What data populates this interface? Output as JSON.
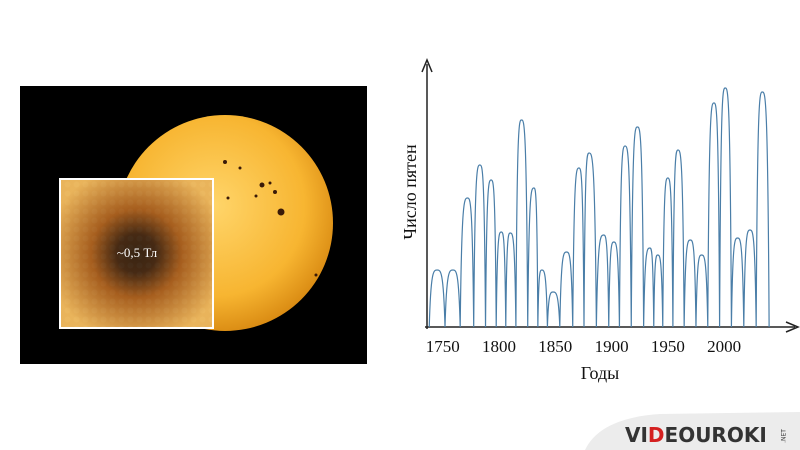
{
  "chart_data": {
    "type": "line",
    "x": [
      1738,
      1745,
      1752,
      1759,
      1765.5,
      1772,
      1777.5,
      1783,
      1788,
      1793,
      1797.5,
      1802,
      1806,
      1810,
      1815,
      1820,
      1825.5,
      1831,
      1834.5,
      1838,
      1843,
      1848,
      1854,
      1860,
      1865.5,
      1871,
      1875.5,
      1880,
      1886.5,
      1893,
      1897.5,
      1902,
      1907,
      1912,
      1917.5,
      1923,
      1928.5,
      1934,
      1937.5,
      1941,
      1945.5,
      1950,
      1954.5,
      1959,
      1964.5,
      1970,
      1975,
      1980,
      1985.5,
      1991,
      1996,
      2001,
      2006.5,
      2012,
      2017.5,
      2023,
      2028.5,
      2034,
      2040
    ],
    "values": [
      0,
      57,
      0,
      57,
      0,
      129,
      0,
      162,
      0,
      147,
      0,
      95,
      0,
      94,
      0,
      207,
      0,
      139,
      0,
      57,
      0,
      35,
      0,
      75,
      0,
      159,
      0,
      174,
      0,
      92,
      0,
      85,
      0,
      181,
      0,
      200,
      0,
      79,
      0,
      72,
      0,
      149,
      0,
      177,
      0,
      87,
      0,
      72,
      0,
      224,
      0,
      239,
      0,
      89,
      0,
      97,
      0,
      235,
      0
    ],
    "color": "#4a7ea8",
    "xlim": [
      1736,
      2063
    ],
    "ylim": [
      0,
      265
    ],
    "xticks": [
      1750,
      1800,
      1850,
      1900,
      1950,
      2000
    ],
    "x_label": "Годы",
    "y_label": "Число пятен"
  },
  "image": {
    "label": "~0,5 Тл"
  },
  "logo": {
    "parts": [
      "VI",
      "D",
      "EOUROKI",
      ".NET"
    ]
  }
}
